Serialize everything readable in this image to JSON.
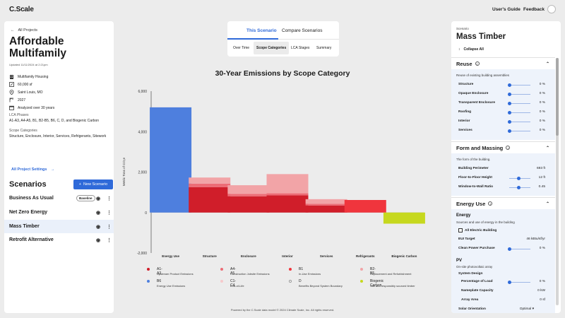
{
  "topbar": {
    "logo": "C.Scale",
    "users_guide": "User's Guide",
    "feedback": "Feedback"
  },
  "project": {
    "back_label": "All Projects",
    "title": "Affordable Multifamily",
    "updated": "Updated 11/11/2024 at 2:21pm",
    "building_type": "Multifamily Housing",
    "area": "60,000 sf",
    "location": "Saint Louis, MO",
    "year": "2027",
    "analysis": "Analyzed over 30 years",
    "lca_label": "LCA Phases",
    "lca_value": "A1-A3, A4-A5, B1, B2-B5, B6, C, D, and Biogenic Carbon",
    "scope_label": "Scope Categories",
    "scope_value": "Structure, Enclosure, Interior, Services, Refrigerants, Sitework",
    "settings_link": "All Project Settings"
  },
  "scenarios": {
    "heading": "Scenarios",
    "new_button": "New Scenario",
    "baseline_badge": "Baseline",
    "items": [
      {
        "label": "Business As Usual"
      },
      {
        "label": "Net Zero Energy"
      },
      {
        "label": "Mass Timber"
      },
      {
        "label": "Retrofit Alternative"
      }
    ]
  },
  "tabs": {
    "primary": [
      "This Scenario",
      "Compare Scenarios"
    ],
    "secondary": [
      "Over Time",
      "Scope Categories",
      "LCA Stages",
      "Summary"
    ]
  },
  "colors": {
    "a1a3": "#d01e2a",
    "a4a5": "#ec6c76",
    "b1": "#f0353d",
    "b2b5": "#f2a4a7",
    "b6": "#4e7fde",
    "c1c4": "#f6c9cb",
    "d": "#ffffff",
    "biogenic": "#c6d81e",
    "accent": "#2f6ad9"
  },
  "chart_data": {
    "type": "bar",
    "stacked": true,
    "title": "30-Year Emissions by Scope Category",
    "ylabel": "Metric Tons of CO₂e",
    "ylim": [
      -2000,
      6000
    ],
    "yticks": [
      "6,000",
      "4,000",
      "2,000",
      "0",
      "-2,000"
    ],
    "ytick_values": [
      6000,
      4000,
      2000,
      0,
      -2000
    ],
    "categories": [
      "Energy Use",
      "Structure",
      "Enclosure",
      "Interior",
      "Services",
      "Refrigerants",
      "Biogenic Carbon"
    ],
    "series": [
      {
        "name": "A1-A3",
        "color": "#d01e2a",
        "values": [
          0,
          1250,
          800,
          850,
          350,
          0,
          0
        ]
      },
      {
        "name": "A4-A5",
        "color": "#ec6c76",
        "values": [
          0,
          180,
          120,
          100,
          80,
          0,
          0
        ]
      },
      {
        "name": "B1",
        "color": "#f0353d",
        "values": [
          0,
          0,
          0,
          0,
          0,
          620,
          0
        ]
      },
      {
        "name": "B2-B5",
        "color": "#f2a4a7",
        "values": [
          0,
          300,
          430,
          950,
          230,
          0,
          0
        ]
      },
      {
        "name": "B6",
        "color": "#4e7fde",
        "values": [
          5200,
          0,
          0,
          0,
          0,
          0,
          0
        ]
      },
      {
        "name": "C1-C4",
        "color": "#f6c9cb",
        "values": [
          0,
          0,
          0,
          0,
          0,
          0,
          0
        ]
      },
      {
        "name": "D",
        "color": "#ffffff",
        "values": [
          0,
          0,
          0,
          0,
          0,
          0,
          0
        ]
      },
      {
        "name": "Biogenic Carbon",
        "color": "#c6d81e",
        "values": [
          0,
          0,
          0,
          0,
          0,
          0,
          -550
        ]
      }
    ],
    "legend": [
      {
        "name": "A1-A3",
        "desc": "Upstream Product Emissions",
        "color": "#d01e2a"
      },
      {
        "name": "A4-A5",
        "desc": "Construction Jobsite Emissions",
        "color": "#ec6c76"
      },
      {
        "name": "B1",
        "desc": "In-Use Emissions",
        "color": "#f0353d"
      },
      {
        "name": "B2-B5",
        "desc": "Replacement and Refurbishment",
        "color": "#f2a4a7"
      },
      {
        "name": "B6",
        "desc": "Energy Use Emissions",
        "color": "#4e7fde"
      },
      {
        "name": "C1-C4",
        "desc": "End-of-Life",
        "color": "#f6c9cb"
      },
      {
        "name": "D",
        "desc": "Benefits Beyond System Boundary",
        "color": "#ffffff"
      },
      {
        "name": "Biogenic Carbon",
        "desc": "Site and responsibly sourced timber",
        "color": "#c6d81e"
      }
    ]
  },
  "footer": "Powered by the C.Scale data model © 2024 Climate Scale, Inc. All rights reserved.",
  "right": {
    "scenario_label": "Scenario",
    "scenario_name": "Mass Timber",
    "collapse_all": "Collapse All",
    "reuse": {
      "title": "Reuse",
      "desc": "Reuse of existing building assemblies",
      "rows": [
        {
          "label": "Structure",
          "value": "0 %",
          "level": 0
        },
        {
          "label": "Opaque Enclosure",
          "value": "0 %",
          "level": 0
        },
        {
          "label": "Transparent Enclosure",
          "value": "0 %",
          "level": 0
        },
        {
          "label": "Roofing",
          "value": "0 %",
          "level": 0
        },
        {
          "label": "Interior",
          "value": "0 %",
          "level": 0
        },
        {
          "label": "Services",
          "value": "0 %",
          "level": 0
        }
      ]
    },
    "form": {
      "title": "Form and Massing",
      "desc": "The form of the building.",
      "rows": [
        {
          "label": "Building Perimeter",
          "value": "693 ft"
        },
        {
          "label": "Floor-to-Floor Height",
          "value": "12 ft",
          "level": 0.45
        },
        {
          "label": "Window-to-Wall Ratio",
          "value": "0.45",
          "level": 0.45
        }
      ]
    },
    "energy": {
      "title": "Energy Use",
      "sub": "Energy",
      "desc": "Sources and use of energy in the building",
      "all_electric": "All Electric Building",
      "eui_label": "EUI Target",
      "eui_value": "46 kBtu/sf/yr",
      "clean_label": "Clean Power Purchase",
      "clean_value": "0 %",
      "pv_title": "PV",
      "pv_desc": "On-site photovoltaic array",
      "system_design": "System Design",
      "pv_rows": [
        {
          "label": "Percentage of Load",
          "value": "0 %"
        },
        {
          "label": "Nameplate Capacity",
          "value": "0 kW"
        },
        {
          "label": "Array Area",
          "value": "0 sf"
        }
      ],
      "orientation_label": "Solar Orientation",
      "orientation_value": "Optimal"
    }
  }
}
